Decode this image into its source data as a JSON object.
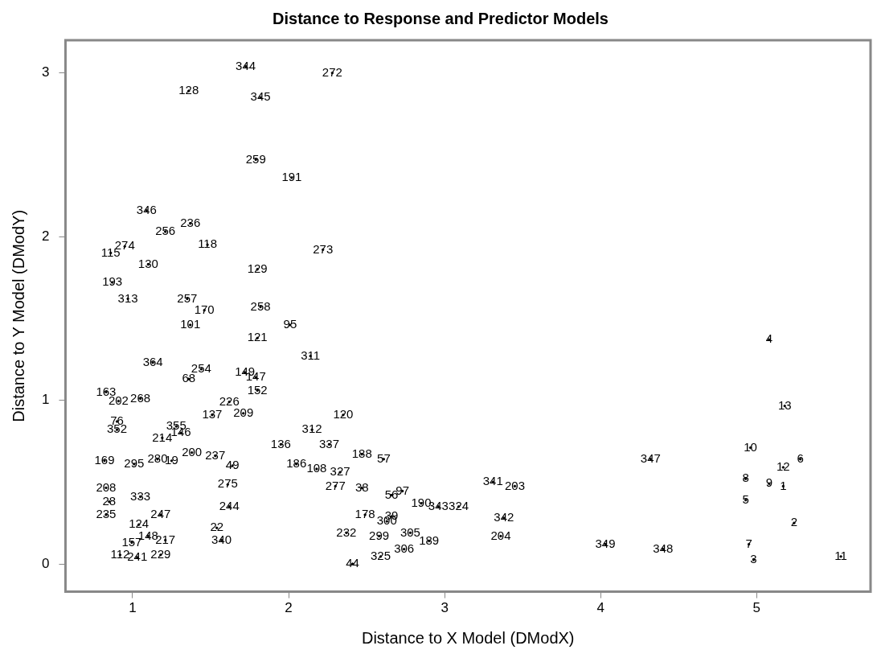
{
  "chart_data": {
    "type": "scatter",
    "title": "Distance to Response and Predictor Models",
    "xlabel": "Distance to X Model (DModX)",
    "ylabel": "Distance to Y Model (DModY)",
    "xlim": [
      0.57,
      5.73
    ],
    "ylim": [
      -0.17,
      3.2
    ],
    "xticks": [
      1,
      2,
      3,
      4,
      5
    ],
    "yticks": [
      0,
      1,
      2,
      3
    ],
    "grid": false,
    "legend": false,
    "series": [
      {
        "color": "#000000",
        "x": [
          1.725,
          2.28,
          1.36,
          1.82,
          1.79,
          2.02,
          1.09,
          1.37,
          1.21,
          1.48,
          0.95,
          0.86,
          2.22,
          1.1,
          1.8,
          0.87,
          0.97,
          1.35,
          1.46,
          1.82,
          1.37,
          2.01,
          1.8,
          5.08,
          1.13,
          2.14,
          1.44,
          1.79,
          1.72,
          1.8,
          0.83,
          0.91,
          1.05,
          5.18,
          2.35,
          1.51,
          0.9,
          1.28,
          0.9,
          1.19,
          1.31,
          2.61,
          2.47,
          1.38,
          1.64,
          2.18,
          2.33,
          0.82,
          1.25,
          4.96,
          4.32,
          5.28,
          5.17,
          4.93,
          5.08,
          5.17,
          3.31,
          3.45,
          2.47,
          0.83,
          4.93,
          3.09,
          3.38,
          0.85,
          1.18,
          0.83,
          5.24,
          2.78,
          3.36,
          2.58,
          2.74,
          4.03,
          4.4,
          4.95,
          4.98,
          5.54,
          2.59,
          2.41,
          1.1,
          0.995,
          1.21,
          0.92,
          1.03,
          1.18,
          1.57,
          1.04,
          1.62,
          1.54,
          2.49,
          2.37,
          2.63,
          2.66,
          2.73,
          2.66,
          2.85,
          2.96,
          1.36,
          1.62,
          1.53,
          1.01,
          1.16,
          1.95,
          1.71,
          2.15,
          2.26,
          2.3,
          2.05,
          1.61,
          1.05,
          2.9
        ],
        "values": [
          3.04,
          3.0,
          2.89,
          2.85,
          2.47,
          2.36,
          2.16,
          2.08,
          2.03,
          1.95,
          1.94,
          1.9,
          1.92,
          1.83,
          1.8,
          1.72,
          1.62,
          1.62,
          1.55,
          1.57,
          1.46,
          1.46,
          1.38,
          1.37,
          1.23,
          1.27,
          1.19,
          1.14,
          1.17,
          1.06,
          1.05,
          0.995,
          1.01,
          0.965,
          0.91,
          0.91,
          0.87,
          0.84,
          0.82,
          0.77,
          0.8,
          0.64,
          0.67,
          0.68,
          0.6,
          0.58,
          0.56,
          0.63,
          0.63,
          0.71,
          0.64,
          0.64,
          0.59,
          0.52,
          0.49,
          0.475,
          0.5,
          0.475,
          0.465,
          0.465,
          0.39,
          0.35,
          0.28,
          0.38,
          0.3,
          0.3,
          0.25,
          0.19,
          0.17,
          0.17,
          0.09,
          0.12,
          0.09,
          0.12,
          0.025,
          0.045,
          0.045,
          0.0,
          0.17,
          0.13,
          0.145,
          0.055,
          0.04,
          0.055,
          0.145,
          0.24,
          0.35,
          0.22,
          0.3,
          0.19,
          0.26,
          0.29,
          0.445,
          0.42,
          0.37,
          0.35,
          1.13,
          0.99,
          0.66,
          0.61,
          0.64,
          0.73,
          0.92,
          0.82,
          0.73,
          0.475,
          0.61,
          0.485,
          0.41,
          0.14
        ]
      }
    ],
    "annotations": [
      {
        "text": "344",
        "x": 1.725,
        "y": 3.04
      },
      {
        "text": "272",
        "x": 2.28,
        "y": 3.0
      },
      {
        "text": "128",
        "x": 1.36,
        "y": 2.89
      },
      {
        "text": "345",
        "x": 1.82,
        "y": 2.85
      },
      {
        "text": "259",
        "x": 1.79,
        "y": 2.47
      },
      {
        "text": "191",
        "x": 2.02,
        "y": 2.36
      },
      {
        "text": "346",
        "x": 1.09,
        "y": 2.16
      },
      {
        "text": "236",
        "x": 1.37,
        "y": 2.08
      },
      {
        "text": "256",
        "x": 1.21,
        "y": 2.03
      },
      {
        "text": "118",
        "x": 1.48,
        "y": 1.95
      },
      {
        "text": "274",
        "x": 0.95,
        "y": 1.94
      },
      {
        "text": "115",
        "x": 0.86,
        "y": 1.9
      },
      {
        "text": "273",
        "x": 2.22,
        "y": 1.92
      },
      {
        "text": "130",
        "x": 1.1,
        "y": 1.83
      },
      {
        "text": "129",
        "x": 1.8,
        "y": 1.8
      },
      {
        "text": "193",
        "x": 0.87,
        "y": 1.72
      },
      {
        "text": "313",
        "x": 0.97,
        "y": 1.62
      },
      {
        "text": "257",
        "x": 1.35,
        "y": 1.62
      },
      {
        "text": "170",
        "x": 1.46,
        "y": 1.55
      },
      {
        "text": "258",
        "x": 1.82,
        "y": 1.57
      },
      {
        "text": "101",
        "x": 1.37,
        "y": 1.46
      },
      {
        "text": "95",
        "x": 2.01,
        "y": 1.46
      },
      {
        "text": "121",
        "x": 1.8,
        "y": 1.38
      },
      {
        "text": "4",
        "x": 5.08,
        "y": 1.37
      },
      {
        "text": "364",
        "x": 1.13,
        "y": 1.23
      },
      {
        "text": "311",
        "x": 2.14,
        "y": 1.27
      },
      {
        "text": "254",
        "x": 1.44,
        "y": 1.19
      },
      {
        "text": "147",
        "x": 1.79,
        "y": 1.14
      },
      {
        "text": "149",
        "x": 1.72,
        "y": 1.17
      },
      {
        "text": "152",
        "x": 1.8,
        "y": 1.06
      },
      {
        "text": "163",
        "x": 0.83,
        "y": 1.05
      },
      {
        "text": "202",
        "x": 0.91,
        "y": 0.995
      },
      {
        "text": "268",
        "x": 1.05,
        "y": 1.01
      },
      {
        "text": "13",
        "x": 5.18,
        "y": 0.965
      },
      {
        "text": "120",
        "x": 2.35,
        "y": 0.91
      },
      {
        "text": "137",
        "x": 1.51,
        "y": 0.91
      },
      {
        "text": "76",
        "x": 0.9,
        "y": 0.87
      },
      {
        "text": "355",
        "x": 1.28,
        "y": 0.84
      },
      {
        "text": "352",
        "x": 0.9,
        "y": 0.82
      },
      {
        "text": "214",
        "x": 1.19,
        "y": 0.77
      },
      {
        "text": "146",
        "x": 1.31,
        "y": 0.8
      },
      {
        "text": "57",
        "x": 2.61,
        "y": 0.64
      },
      {
        "text": "188",
        "x": 2.47,
        "y": 0.67
      },
      {
        "text": "200",
        "x": 1.38,
        "y": 0.68
      },
      {
        "text": "49",
        "x": 1.64,
        "y": 0.6
      },
      {
        "text": "108",
        "x": 2.18,
        "y": 0.58
      },
      {
        "text": "327",
        "x": 2.33,
        "y": 0.56
      },
      {
        "text": "169",
        "x": 0.82,
        "y": 0.63
      },
      {
        "text": "19",
        "x": 1.25,
        "y": 0.63
      },
      {
        "text": "10",
        "x": 4.96,
        "y": 0.71
      },
      {
        "text": "347",
        "x": 4.32,
        "y": 0.64
      },
      {
        "text": "6",
        "x": 5.28,
        "y": 0.64
      },
      {
        "text": "12",
        "x": 5.17,
        "y": 0.59
      },
      {
        "text": "8",
        "x": 4.93,
        "y": 0.52
      },
      {
        "text": "9",
        "x": 5.08,
        "y": 0.49
      },
      {
        "text": "1",
        "x": 5.17,
        "y": 0.475
      },
      {
        "text": "341",
        "x": 3.31,
        "y": 0.5
      },
      {
        "text": "203",
        "x": 3.45,
        "y": 0.475
      },
      {
        "text": "38",
        "x": 2.47,
        "y": 0.465
      },
      {
        "text": "208",
        "x": 0.83,
        "y": 0.465
      },
      {
        "text": "5",
        "x": 4.93,
        "y": 0.39
      },
      {
        "text": "324",
        "x": 3.09,
        "y": 0.35
      },
      {
        "text": "342",
        "x": 3.38,
        "y": 0.28
      },
      {
        "text": "28",
        "x": 0.85,
        "y": 0.38
      },
      {
        "text": "247",
        "x": 1.18,
        "y": 0.3
      },
      {
        "text": "235",
        "x": 0.83,
        "y": 0.3
      },
      {
        "text": "2",
        "x": 5.24,
        "y": 0.25
      },
      {
        "text": "305",
        "x": 2.78,
        "y": 0.19
      },
      {
        "text": "204",
        "x": 3.36,
        "y": 0.17
      },
      {
        "text": "299",
        "x": 2.58,
        "y": 0.17
      },
      {
        "text": "306",
        "x": 2.74,
        "y": 0.09
      },
      {
        "text": "349",
        "x": 4.03,
        "y": 0.12
      },
      {
        "text": "348",
        "x": 4.4,
        "y": 0.09
      },
      {
        "text": "7",
        "x": 4.95,
        "y": 0.12
      },
      {
        "text": "3",
        "x": 4.98,
        "y": 0.025
      },
      {
        "text": "11",
        "x": 5.54,
        "y": 0.045
      },
      {
        "text": "325",
        "x": 2.59,
        "y": 0.045
      },
      {
        "text": "44",
        "x": 2.41,
        "y": 0.0
      },
      {
        "text": "148",
        "x": 1.1,
        "y": 0.17
      },
      {
        "text": "157",
        "x": 0.995,
        "y": 0.13
      },
      {
        "text": "217",
        "x": 1.21,
        "y": 0.145
      },
      {
        "text": "112",
        "x": 0.92,
        "y": 0.055
      },
      {
        "text": "241",
        "x": 1.03,
        "y": 0.04
      },
      {
        "text": "229",
        "x": 1.18,
        "y": 0.055
      },
      {
        "text": "340",
        "x": 1.57,
        "y": 0.145
      },
      {
        "text": "124",
        "x": 1.04,
        "y": 0.24
      },
      {
        "text": "244",
        "x": 1.62,
        "y": 0.35
      },
      {
        "text": "22",
        "x": 1.54,
        "y": 0.22
      },
      {
        "text": "178",
        "x": 2.49,
        "y": 0.3
      },
      {
        "text": "232",
        "x": 2.37,
        "y": 0.19
      },
      {
        "text": "300",
        "x": 2.63,
        "y": 0.26
      },
      {
        "text": "39",
        "x": 2.66,
        "y": 0.29
      },
      {
        "text": "97",
        "x": 2.73,
        "y": 0.445
      },
      {
        "text": "56",
        "x": 2.66,
        "y": 0.42
      },
      {
        "text": "190",
        "x": 2.85,
        "y": 0.37
      },
      {
        "text": "343",
        "x": 2.96,
        "y": 0.35
      },
      {
        "text": "68",
        "x": 1.36,
        "y": 1.13
      },
      {
        "text": "226",
        "x": 1.62,
        "y": 0.99
      },
      {
        "text": "237",
        "x": 1.53,
        "y": 0.66
      },
      {
        "text": "295",
        "x": 1.01,
        "y": 0.61
      },
      {
        "text": "280",
        "x": 1.16,
        "y": 0.64
      },
      {
        "text": "136",
        "x": 1.95,
        "y": 0.73
      },
      {
        "text": "209",
        "x": 1.71,
        "y": 0.92
      },
      {
        "text": "312",
        "x": 2.15,
        "y": 0.82
      },
      {
        "text": "337",
        "x": 2.26,
        "y": 0.73
      },
      {
        "text": "277",
        "x": 2.3,
        "y": 0.475
      },
      {
        "text": "186",
        "x": 2.05,
        "y": 0.61
      },
      {
        "text": "275",
        "x": 1.61,
        "y": 0.485
      },
      {
        "text": "333",
        "x": 1.05,
        "y": 0.41
      },
      {
        "text": "189",
        "x": 2.9,
        "y": 0.14
      }
    ]
  }
}
